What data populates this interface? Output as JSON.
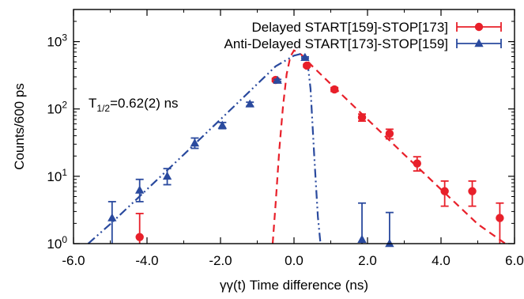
{
  "chart_data": {
    "type": "scatter",
    "xlabel": "γγ(t) Time difference (ns)",
    "ylabel": "Counts/600 ps",
    "xlim": [
      -6.0,
      6.0
    ],
    "ylim": [
      1,
      3000
    ],
    "yscale": "log",
    "x_ticks": [
      -6.0,
      -4.0,
      -2.0,
      0.0,
      2.0,
      4.0,
      6.0
    ],
    "x_tick_labels": [
      "-6.0",
      "-4.0",
      "-2.0",
      "0.0",
      "2.0",
      "4.0",
      "6.0"
    ],
    "y_ticks": [
      1,
      10,
      100,
      1000
    ],
    "y_tick_labels": [
      {
        "base": "10",
        "exp": "0"
      },
      {
        "base": "10",
        "exp": "1"
      },
      {
        "base": "10",
        "exp": "2"
      },
      {
        "base": "10",
        "exp": "3"
      }
    ],
    "legend_position": "top-right",
    "annotation": {
      "main": "T",
      "sub": "1/2",
      "rest": "=0.62(2) ns"
    },
    "colors": {
      "red": "#e8202a",
      "blue": "#2a4a9e"
    },
    "series": [
      {
        "name": "Delayed START[159]-STOP[173]",
        "color": "#e8202a",
        "marker": "circle",
        "points": [
          {
            "x": -4.2,
            "y": 1.25,
            "lo": 1.0,
            "hi": 2.8
          },
          {
            "x": -0.5,
            "y": 270,
            "lo": 255,
            "hi": 285
          },
          {
            "x": 0.35,
            "y": 440,
            "lo": 420,
            "hi": 460
          },
          {
            "x": 1.1,
            "y": 195,
            "lo": 182,
            "hi": 208
          },
          {
            "x": 1.85,
            "y": 75,
            "lo": 66,
            "hi": 84
          },
          {
            "x": 2.6,
            "y": 43,
            "lo": 36,
            "hi": 50
          },
          {
            "x": 3.35,
            "y": 15.5,
            "lo": 12,
            "hi": 19.5
          },
          {
            "x": 4.1,
            "y": 6,
            "lo": 3.6,
            "hi": 8.5
          },
          {
            "x": 4.85,
            "y": 6,
            "lo": 3.6,
            "hi": 8.5
          },
          {
            "x": 5.6,
            "y": 2.4,
            "lo": 1.0,
            "hi": 4.0
          }
        ],
        "fit": {
          "style": "dashed",
          "x": [
            -0.58,
            -0.5,
            -0.4,
            -0.3,
            -0.2,
            -0.1,
            0.0,
            0.2,
            0.5,
            1.0,
            2.0,
            3.0,
            4.0,
            5.0,
            5.75
          ],
          "y": [
            1.0,
            4,
            25,
            110,
            330,
            600,
            740,
            640,
            430,
            235,
            70,
            21,
            6.4,
            1.95,
            1.0
          ]
        }
      },
      {
        "name": "Anti-Delayed START[173]-STOP[159]",
        "color": "#2a4a9e",
        "marker": "triangle",
        "points": [
          {
            "x": -4.95,
            "y": 2.4,
            "lo": 1.0,
            "hi": 4.2
          },
          {
            "x": -4.2,
            "y": 6.2,
            "lo": 4.2,
            "hi": 9.0
          },
          {
            "x": -3.45,
            "y": 10,
            "lo": 7.5,
            "hi": 13
          },
          {
            "x": -2.7,
            "y": 31,
            "lo": 26,
            "hi": 37
          },
          {
            "x": -1.95,
            "y": 57,
            "lo": 51,
            "hi": 63
          },
          {
            "x": -1.2,
            "y": 118,
            "lo": 110,
            "hi": 126
          },
          {
            "x": -0.45,
            "y": 265,
            "lo": 255,
            "hi": 275
          },
          {
            "x": 0.3,
            "y": 580,
            "lo": 565,
            "hi": 595
          },
          {
            "x": 1.85,
            "y": 1.15,
            "lo": 1.0,
            "hi": 4.0
          },
          {
            "x": 2.6,
            "y": 1.0,
            "lo": 1.0,
            "hi": 2.9
          }
        ],
        "fit": {
          "style": "dash-dot-dot",
          "x": [
            -5.6,
            -5.0,
            -4.0,
            -3.0,
            -2.0,
            -1.0,
            -0.5,
            0.0,
            0.2,
            0.35,
            0.45,
            0.55,
            0.65,
            0.72
          ],
          "y": [
            1.0,
            1.95,
            6.4,
            21,
            70,
            235,
            430,
            620,
            660,
            600,
            200,
            20,
            2.5,
            1.0
          ]
        }
      }
    ]
  }
}
